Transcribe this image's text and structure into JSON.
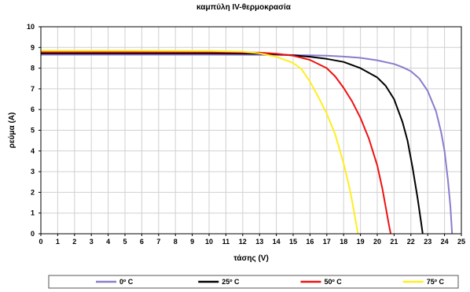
{
  "chart_data": {
    "type": "line",
    "title": "καμπύλη IV-θερμοκρασία",
    "xlabel": "τάσης (V)",
    "ylabel": "ρεύμα (A)",
    "xlim": [
      0,
      25
    ],
    "ylim": [
      0,
      10
    ],
    "xticks": [
      "0",
      "1",
      "2",
      "3",
      "4",
      "5",
      "6",
      "7",
      "8",
      "9",
      "10",
      "11",
      "12",
      "13",
      "14",
      "15",
      "16",
      "17",
      "18",
      "19",
      "20",
      "21",
      "22",
      "23",
      "24",
      "25"
    ],
    "yticks": [
      "0",
      "1",
      "2",
      "3",
      "4",
      "5",
      "6",
      "7",
      "8",
      "9",
      "10"
    ],
    "grid": true,
    "legend_position": "bottom",
    "series": [
      {
        "name": "0º C",
        "color": "#8b7ccc",
        "points": [
          [
            0,
            8.65
          ],
          [
            5,
            8.65
          ],
          [
            10,
            8.65
          ],
          [
            14,
            8.64
          ],
          [
            16,
            8.62
          ],
          [
            17,
            8.6
          ],
          [
            18,
            8.56
          ],
          [
            19,
            8.5
          ],
          [
            20,
            8.38
          ],
          [
            21,
            8.2
          ],
          [
            21.5,
            8.05
          ],
          [
            22,
            7.85
          ],
          [
            22.5,
            7.5
          ],
          [
            23,
            6.9
          ],
          [
            23.5,
            5.9
          ],
          [
            23.8,
            4.9
          ],
          [
            24,
            4.0
          ],
          [
            24.2,
            2.6
          ],
          [
            24.35,
            1.3
          ],
          [
            24.45,
            0
          ]
        ]
      },
      {
        "name": "25º C",
        "color": "#000000",
        "points": [
          [
            0,
            8.72
          ],
          [
            5,
            8.72
          ],
          [
            10,
            8.72
          ],
          [
            13,
            8.7
          ],
          [
            14,
            8.67
          ],
          [
            15,
            8.62
          ],
          [
            16,
            8.55
          ],
          [
            17,
            8.45
          ],
          [
            18,
            8.3
          ],
          [
            19,
            8.0
          ],
          [
            20,
            7.55
          ],
          [
            20.5,
            7.15
          ],
          [
            21,
            6.5
          ],
          [
            21.5,
            5.4
          ],
          [
            21.8,
            4.5
          ],
          [
            22.1,
            3.2
          ],
          [
            22.4,
            1.7
          ],
          [
            22.6,
            0.6
          ],
          [
            22.7,
            0
          ]
        ]
      },
      {
        "name": "50º C",
        "color": "#ee1111",
        "points": [
          [
            0,
            8.78
          ],
          [
            5,
            8.78
          ],
          [
            10,
            8.78
          ],
          [
            13,
            8.75
          ],
          [
            14,
            8.7
          ],
          [
            15,
            8.6
          ],
          [
            16,
            8.4
          ],
          [
            17,
            8.0
          ],
          [
            17.5,
            7.6
          ],
          [
            18,
            7.05
          ],
          [
            18.5,
            6.4
          ],
          [
            19,
            5.6
          ],
          [
            19.5,
            4.6
          ],
          [
            20,
            3.3
          ],
          [
            20.3,
            2.2
          ],
          [
            20.5,
            1.3
          ],
          [
            20.7,
            0.4
          ],
          [
            20.8,
            0
          ]
        ]
      },
      {
        "name": "75º C",
        "color": "#ffee22",
        "points": [
          [
            0,
            8.84
          ],
          [
            5,
            8.84
          ],
          [
            10,
            8.83
          ],
          [
            12,
            8.8
          ],
          [
            13,
            8.72
          ],
          [
            14,
            8.55
          ],
          [
            15,
            8.25
          ],
          [
            15.5,
            7.95
          ],
          [
            16,
            7.35
          ],
          [
            16.5,
            6.6
          ],
          [
            17,
            5.8
          ],
          [
            17.5,
            4.8
          ],
          [
            18,
            3.4
          ],
          [
            18.3,
            2.4
          ],
          [
            18.5,
            1.6
          ],
          [
            18.7,
            0.7
          ],
          [
            18.85,
            0
          ]
        ]
      }
    ]
  }
}
